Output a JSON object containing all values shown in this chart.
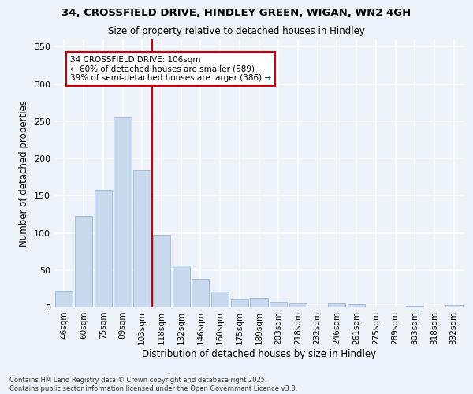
{
  "title_line1": "34, CROSSFIELD DRIVE, HINDLEY GREEN, WIGAN, WN2 4GH",
  "title_line2": "Size of property relative to detached houses in Hindley",
  "xlabel": "Distribution of detached houses by size in Hindley",
  "ylabel": "Number of detached properties",
  "categories": [
    "46sqm",
    "60sqm",
    "75sqm",
    "89sqm",
    "103sqm",
    "118sqm",
    "132sqm",
    "146sqm",
    "160sqm",
    "175sqm",
    "189sqm",
    "203sqm",
    "218sqm",
    "232sqm",
    "246sqm",
    "261sqm",
    "275sqm",
    "289sqm",
    "303sqm",
    "318sqm",
    "332sqm"
  ],
  "values": [
    22,
    123,
    158,
    255,
    184,
    97,
    56,
    38,
    21,
    11,
    13,
    7,
    5,
    0,
    5,
    4,
    0,
    0,
    2,
    0,
    3
  ],
  "bar_color": "#c8d9ee",
  "bar_edge_color": "#9ab8d8",
  "background_color": "#eef2fb",
  "grid_color": "#ffffff",
  "annotation_text": "34 CROSSFIELD DRIVE: 106sqm\n← 60% of detached houses are smaller (589)\n39% of semi-detached houses are larger (386) →",
  "vline_color": "#cc0000",
  "annotation_box_color": "#cc0000",
  "ylim": [
    0,
    360
  ],
  "yticks": [
    0,
    50,
    100,
    150,
    200,
    250,
    300,
    350
  ],
  "footer_line1": "Contains HM Land Registry data © Crown copyright and database right 2025.",
  "footer_line2": "Contains public sector information licensed under the Open Government Licence v3.0."
}
